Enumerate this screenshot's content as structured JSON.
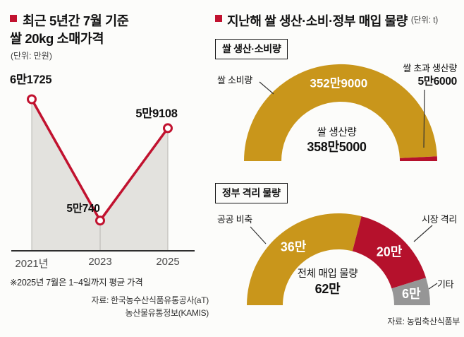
{
  "colors": {
    "accent_red": "#c1122f",
    "gauge_red": "#b5112c",
    "gold": "#c9961b",
    "gray_segment": "#969696",
    "area_fill": "#e3e2de"
  },
  "left_panel": {
    "title_line1": "최근 5년간 7월 기준",
    "title_line2": "쌀 20kg 소매가격",
    "unit_label": "(단위: 만원)",
    "source_line1": "자료: 한국농수산식품유통공사(aT)",
    "source_line2": "농산물유통정보(KAMIS)"
  },
  "right_panel": {
    "title": "지난해 쌀 생산·소비·정부 매입 물량",
    "unit_label": "(단위: t)",
    "source": "자료: 농림축산식품부"
  },
  "chart_data": [
    {
      "type": "line",
      "title": "최근 5년간 7월 기준 쌀 20kg 소매가격",
      "unit": "만원",
      "x": [
        "2021년",
        "2023",
        "2025"
      ],
      "values": [
        61725,
        50740,
        59108
      ],
      "point_labels": [
        "6만1725",
        "5만740",
        "5만9108"
      ],
      "ylim": [
        48000,
        64000
      ],
      "line_color": "#c1122f",
      "area_fill": "#e3e2de",
      "grid": false,
      "annotation": "※2025년 7월은 1~4일까지 평균 가격"
    },
    {
      "type": "donut-gauge",
      "title": "쌀 생산·소비량",
      "total": 3585000,
      "center_label": "쌀 생산량",
      "center_value_display": "358만5000",
      "segments": [
        {
          "label": "쌀 소비량",
          "value": 3529000,
          "display": "352만9000",
          "color": "#c9961b",
          "label_pos": "arc"
        },
        {
          "label": "쌀 초과 생산량",
          "value": 56000,
          "display": "5만6000",
          "color": "#b5112c",
          "label_pos": "external"
        }
      ]
    },
    {
      "type": "donut-gauge",
      "title": "정부 격리 물량",
      "total": 620000,
      "center_label": "전체 매입 물량",
      "center_value_display": "62만",
      "segments": [
        {
          "label": "공공 비축",
          "value": 360000,
          "display": "36만",
          "color": "#c9961b",
          "label_pos": "arc"
        },
        {
          "label": "시장 격리",
          "value": 200000,
          "display": "20만",
          "color": "#b5112c",
          "label_pos": "arc"
        },
        {
          "label": "기타",
          "value": 60000,
          "display": "6만",
          "color": "#969696",
          "label_pos": "arc"
        }
      ]
    }
  ]
}
